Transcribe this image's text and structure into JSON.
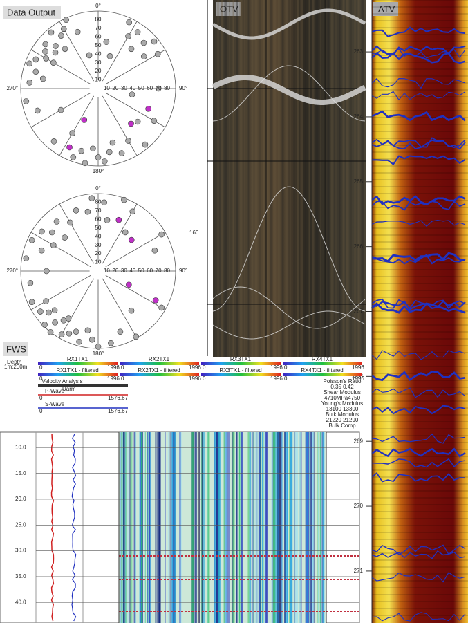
{
  "panels": {
    "data_output": "Data Output",
    "otv": "OTV",
    "atv": "ATV",
    "fws": "FWS"
  },
  "stereonets": [
    {
      "north": "0°",
      "east": "90°",
      "south": "180°",
      "west": "270°",
      "ring_labels": [
        10,
        20,
        30,
        40,
        50,
        60,
        70,
        80
      ],
      "pole_color": "#aaaaaa",
      "highlight_color": "#c030c8",
      "poles": [
        [
          300,
          70
        ],
        [
          305,
          75
        ],
        [
          310,
          80
        ],
        [
          315,
          70
        ],
        [
          320,
          85
        ],
        [
          295,
          80
        ],
        [
          290,
          85
        ],
        [
          285,
          75
        ],
        [
          300,
          60
        ],
        [
          310,
          65
        ],
        [
          325,
          75
        ],
        [
          330,
          80
        ],
        [
          280,
          65
        ],
        [
          275,
          80
        ],
        [
          320,
          60
        ],
        [
          335,
          88
        ],
        [
          340,
          70
        ],
        [
          30,
          70
        ],
        [
          35,
          80
        ],
        [
          40,
          60
        ],
        [
          45,
          75
        ],
        [
          25,
          85
        ],
        [
          50,
          85
        ],
        [
          55,
          65
        ],
        [
          60,
          80
        ],
        [
          170,
          75
        ],
        [
          175,
          85
        ],
        [
          180,
          80
        ],
        [
          185,
          70
        ],
        [
          190,
          88
        ],
        [
          165,
          65
        ],
        [
          195,
          75
        ],
        [
          200,
          85
        ],
        [
          160,
          80
        ],
        [
          150,
          70
        ],
        [
          210,
          60
        ],
        [
          220,
          80
        ],
        [
          140,
          85
        ],
        [
          130,
          60
        ],
        [
          120,
          75
        ],
        [
          100,
          40
        ],
        [
          90,
          70
        ],
        [
          20,
          40
        ],
        [
          240,
          50
        ],
        [
          250,
          75
        ],
        [
          260,
          85
        ],
        [
          345,
          40
        ],
        [
          10,
          55
        ]
      ],
      "highlighted_poles": [
        [
          112,
          63
        ],
        [
          204,
          40
        ],
        [
          137,
          56
        ],
        [
          206,
          76
        ]
      ]
    },
    {
      "north": "0°",
      "east": "90°",
      "south": "180°",
      "west": "270°",
      "ring_labels": [
        10,
        20,
        30,
        40,
        50,
        60,
        70,
        80
      ],
      "pole_color": "#aaaaaa",
      "highlight_color": "#c030c8",
      "poles": [
        [
          200,
          75
        ],
        [
          205,
          80
        ],
        [
          210,
          85
        ],
        [
          215,
          70
        ],
        [
          220,
          78
        ],
        [
          225,
          88
        ],
        [
          230,
          75
        ],
        [
          195,
          85
        ],
        [
          190,
          70
        ],
        [
          235,
          82
        ],
        [
          240,
          70
        ],
        [
          212,
          65
        ],
        [
          218,
          90
        ],
        [
          228,
          68
        ],
        [
          245,
          85
        ],
        [
          185,
          80
        ],
        [
          180,
          88
        ],
        [
          170,
          85
        ],
        [
          160,
          75
        ],
        [
          300,
          60
        ],
        [
          310,
          70
        ],
        [
          305,
          80
        ],
        [
          320,
          75
        ],
        [
          295,
          85
        ],
        [
          315,
          55
        ],
        [
          290,
          70
        ],
        [
          330,
          65
        ],
        [
          340,
          75
        ],
        [
          350,
          70
        ],
        [
          355,
          85
        ],
        [
          5,
          80
        ],
        [
          10,
          60
        ],
        [
          20,
          88
        ],
        [
          30,
          80
        ],
        [
          35,
          55
        ],
        [
          60,
          85
        ],
        [
          70,
          70
        ],
        [
          120,
          85
        ],
        [
          140,
          60
        ],
        [
          150,
          88
        ],
        [
          260,
          80
        ],
        [
          270,
          60
        ],
        [
          280,
          85
        ]
      ],
      "highlighted_poles": [
        [
          22,
          64
        ],
        [
          47,
          53
        ],
        [
          114,
          39
        ],
        [
          117,
          75
        ]
      ]
    }
  ],
  "otv_scale_label": "160",
  "depth_axis": {
    "ylim": [
      262.2,
      271.8
    ],
    "ticks": [
      263,
      264,
      265,
      266,
      267,
      268,
      269,
      270,
      271
    ]
  },
  "fws": {
    "depth": "Depth",
    "scale": "1m:200m",
    "raw_tracks": [
      "RX1TX1",
      "RX2TX1",
      "RX3TX1",
      "RX4TX1"
    ],
    "filtered_tracks": [
      "RX1TX1 - filtered",
      "RX2TX1 - filtered",
      "RX3TX1 - filtered",
      "RX4TX1 - filtered"
    ],
    "track_min": "0",
    "track_max": "1996",
    "velocity": "Velocity Analysis",
    "uarm": "Uarm",
    "vmin": "0",
    "vmax": "1576.67",
    "p_wave": "P-Wave",
    "s_wave": "S-Wave",
    "props": [
      "Poisson's Ratio",
      "0.35   0.42",
      "Shear Modulus",
      "4710MPa4750",
      "Young's Modulus",
      "13100    13300",
      "Bulk Modulus",
      "21220    21290",
      "Bulk Comp"
    ],
    "depth_axis": {
      "ylim": [
        7,
        44
      ],
      "ticks": [
        {
          "value": 10,
          "label": "10.0"
        },
        {
          "value": 15,
          "label": "15.0"
        },
        {
          "value": 20,
          "label": "20.0"
        },
        {
          "value": 25,
          "label": "25.0"
        },
        {
          "value": 30,
          "label": "30.0"
        },
        {
          "value": 35,
          "label": "35.0"
        },
        {
          "value": 40,
          "label": "40.0"
        }
      ]
    }
  }
}
